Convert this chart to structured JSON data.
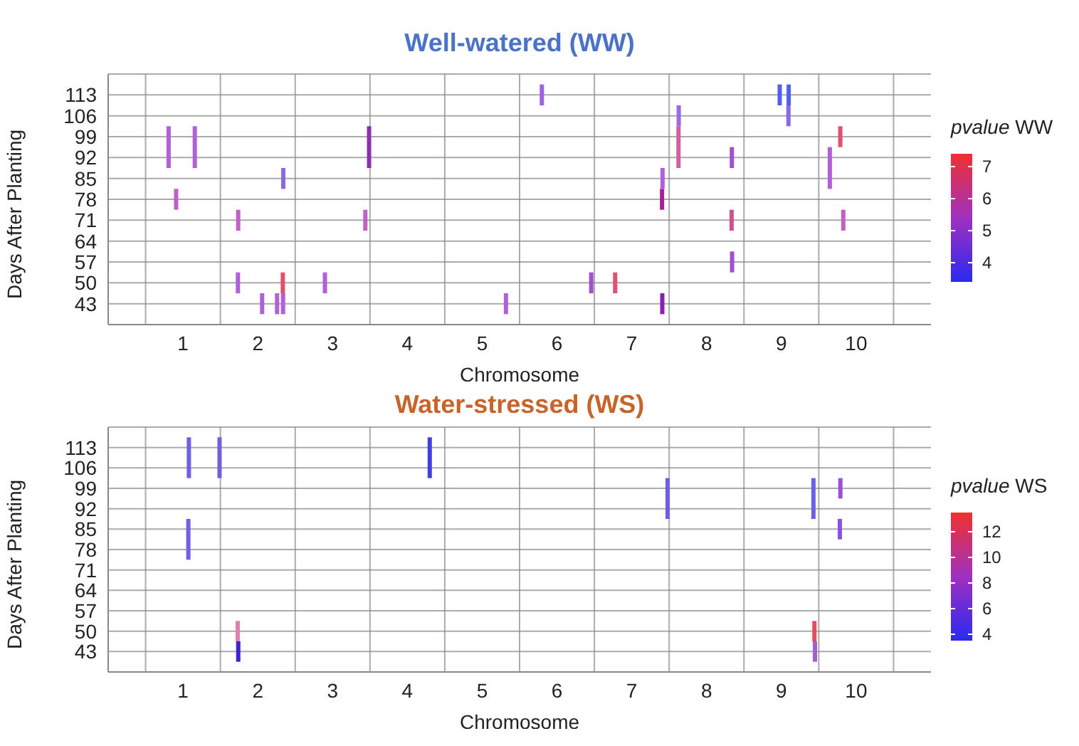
{
  "chart_data": [
    {
      "type": "bar",
      "title": "Well-watered (WW)",
      "xlabel": "Chromosome",
      "ylabel": "Days After Planting",
      "clabel": "pvalue WW",
      "series": [
        {
          "x": [
            0.81,
            0.91,
            1.16,
            1.74,
            2.06,
            2.26,
            2.34,
            2.9,
            3.44,
            3.49,
            5.32,
            5.8,
            6.46,
            6.78,
            7.41,
            7.63,
            8.34,
            8.98,
            9.1,
            9.65,
            9.79,
            9.83
          ],
          "base": [
            88.5,
            74.5,
            88.5,
            67.5,
            39.5,
            39.5,
            39.5,
            46.5,
            67.5,
            88.5,
            39.5,
            109.5,
            46.5,
            46.5,
            39.5,
            102.5,
            88.5,
            109.5,
            109.5,
            81.5,
            95.5,
            67.5
          ],
          "values": [
            14,
            7,
            14,
            7,
            7,
            7,
            7,
            7,
            7,
            14,
            7,
            7,
            7,
            7,
            7,
            7,
            7,
            7,
            7,
            14,
            7,
            7
          ],
          "colors": [
            "#b060d8",
            "#c060c8",
            "#b060d8",
            "#c060c8",
            "#b060d8",
            "#b060d8",
            "#b060d8",
            "#b060d8",
            "#c060c8",
            "#8a30b0",
            "#b060d8",
            "#a060e0",
            "#a050d0",
            "#e05070",
            "#8a20b0",
            "#9a6ae0",
            "#a050d0",
            "#5060e8",
            "#5060e8",
            "#b060d8",
            "#e05070",
            "#c060c8"
          ]
        },
        {
          "x": [
            1.74,
            2.34,
            7.41,
            7.63,
            8.34,
            9.1
          ],
          "base": [
            46.5,
            46.5,
            74.5,
            88.5,
            67.5,
            102.5
          ],
          "values": [
            7,
            7,
            7,
            14,
            7,
            7
          ],
          "colors": [
            "#b060d8",
            "#e0506a",
            "#a82090",
            "#d060a0",
            "#d05090",
            "#8a6ae0"
          ]
        },
        {
          "x": [
            2.34,
            7.41,
            8.34
          ],
          "base": [
            81.5,
            81.5,
            53.5
          ],
          "values": [
            7,
            7,
            7
          ],
          "colors": [
            "#8a6ae0",
            "#b060d8",
            "#a050d0"
          ]
        }
      ],
      "xlim": [
        0,
        11
      ],
      "xticks": [
        {
          "value": 0.5,
          "label": null
        },
        1,
        {
          "value": 1.5,
          "label": null
        },
        2,
        {
          "value": 2.5,
          "label": null
        },
        3,
        {
          "value": 3.5,
          "label": null
        },
        4,
        {
          "value": 4.5,
          "label": null
        },
        5,
        {
          "value": 5.5,
          "label": null
        },
        6,
        {
          "value": 6.5,
          "label": null
        },
        7,
        {
          "value": 7.5,
          "label": null
        },
        8,
        {
          "value": 8.5,
          "label": null
        },
        9,
        {
          "value": 9.5,
          "label": null
        },
        10,
        {
          "value": 10.5,
          "label": null
        }
      ],
      "ylim": [
        36,
        120
      ],
      "yticks": [
        43,
        50,
        57,
        64,
        71,
        78,
        85,
        92,
        99,
        106,
        113
      ],
      "grid": true,
      "clim": [
        3.4,
        7.4
      ],
      "cticks": [
        4,
        5,
        6,
        7
      ]
    },
    {
      "type": "bar",
      "title": "Water-stressed (WS)",
      "xlabel": "Chromosome",
      "ylabel": "Days After Planting",
      "clabel": "pvalue WS",
      "series": [
        {
          "x": [
            1.08,
            1.49,
            1.74,
            4.3,
            7.48,
            9.43,
            9.45,
            9.79
          ],
          "base": [
            102.5,
            102.5,
            39.5,
            102.5,
            88.5,
            88.5,
            39.5,
            95.5
          ],
          "values": [
            14,
            14,
            7,
            14,
            14,
            14,
            7,
            7
          ],
          "colors": [
            "#7060e8",
            "#7060e0",
            "#4020d0",
            "#4040e0",
            "#6a60e8",
            "#6a60e8",
            "#a060d0",
            "#9a50d8"
          ]
        },
        {
          "x": [
            1.08,
            1.74,
            9.45,
            9.79
          ],
          "base": [
            74.5,
            46.5,
            46.5,
            81.5
          ],
          "values": [
            14,
            7,
            7,
            7
          ],
          "colors": [
            "#7060e8",
            "#e080b0",
            "#e05060",
            "#8a50e0"
          ]
        }
      ],
      "xlim": [
        0,
        11
      ],
      "xticks": [
        {
          "value": 0.5,
          "label": null
        },
        1,
        {
          "value": 1.5,
          "label": null
        },
        2,
        {
          "value": 2.5,
          "label": null
        },
        3,
        {
          "value": 3.5,
          "label": null
        },
        4,
        {
          "value": 4.5,
          "label": null
        },
        5,
        {
          "value": 5.5,
          "label": null
        },
        6,
        {
          "value": 6.5,
          "label": null
        },
        7,
        {
          "value": 7.5,
          "label": null
        },
        8,
        {
          "value": 8.5,
          "label": null
        },
        9,
        {
          "value": 9.5,
          "label": null
        },
        10,
        {
          "value": 10.5,
          "label": null
        }
      ],
      "ylim": [
        36,
        120
      ],
      "yticks": [
        43,
        50,
        57,
        64,
        71,
        78,
        85,
        92,
        99,
        106,
        113
      ],
      "grid": true,
      "clim": [
        3.5,
        13.5
      ],
      "cticks": [
        4,
        6,
        8,
        10,
        12
      ]
    }
  ]
}
